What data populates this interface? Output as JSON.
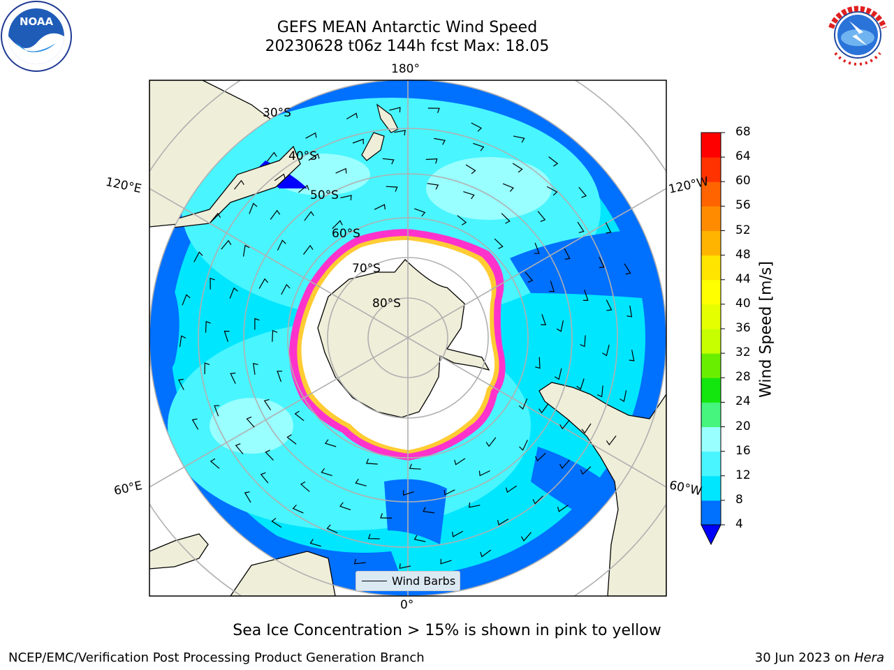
{
  "title": {
    "line1": "GEFS MEAN Antarctic Wind Speed",
    "line2": "20230628 t06z 144h fcst   Max: 18.05"
  },
  "grid_labels": {
    "lon_180": "180°",
    "lon_0": "0°",
    "lon_120e": "120°E",
    "lon_120w": "120°W",
    "lon_60e": "60°E",
    "lon_60w": "60°W",
    "lat_30": "30°S",
    "lat_40": "40°S",
    "lat_50": "50°S",
    "lat_60": "60°S",
    "lat_70": "70°S",
    "lat_80": "80°S"
  },
  "colorbar": {
    "label": "Wind Speed [m/s]",
    "ticks": [
      "4",
      "8",
      "12",
      "16",
      "20",
      "24",
      "28",
      "32",
      "36",
      "40",
      "44",
      "48",
      "52",
      "56",
      "60",
      "64",
      "68"
    ],
    "colors": [
      "#0070ff",
      "#00e6ff",
      "#49f5ff",
      "#99ffff",
      "#45f57d",
      "#13e60e",
      "#6aee00",
      "#c8ff00",
      "#e6ff00",
      "#ffff00",
      "#ffe400",
      "#ffb400",
      "#ff8c00",
      "#ff6400",
      "#ff3300",
      "#ff0000"
    ],
    "under_color": "#0000ff"
  },
  "legend": {
    "label": "Wind Barbs"
  },
  "caption": "Sea Ice Concentration > 15% is shown in pink to yellow",
  "footer": {
    "credit": "NCEP/EMC/Verification Post Processing Product Generation Branch",
    "date_prefix": "30 Jun 2023 on ",
    "date_host": "Hera"
  },
  "colors": {
    "land": "#efeed9",
    "ice_free_high": "#ffffff",
    "sea_ice_pink": "#ff33cc",
    "sea_ice_yellow": "#ffcc33",
    "grid": "#b0b0b0"
  }
}
